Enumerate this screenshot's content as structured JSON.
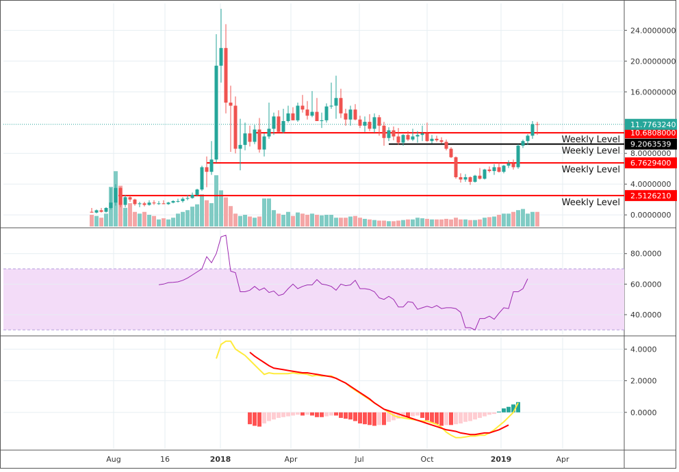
{
  "chart_data": [
    {
      "type": "candlestick",
      "title": "",
      "ylim": [
        -1.5,
        27.5
      ],
      "y_ticks": [
        "0.0000000",
        "4.0000000",
        "8.0000000",
        "16.0000000",
        "20.0000000",
        "24.0000000"
      ],
      "x_ticks": [
        "Aug",
        "16",
        "2018",
        "Apr",
        "Jul",
        "Oct",
        "2019",
        "Apr"
      ],
      "last_price": "11.7763240",
      "last_price_value": 11.7763,
      "levels": [
        {
          "value": 10.6808,
          "tag": "10.6808000",
          "label": "Weekly Level",
          "color": "#ff0000",
          "tag_fg": "#ffffff"
        },
        {
          "value": 9.20635,
          "tag": "9.2063539",
          "label": "Weekly Level",
          "color": "#000000",
          "tag_fg": "#ffffff"
        },
        {
          "value": 6.76294,
          "tag": "6.7629400",
          "label": "Weekly Level",
          "color": "#ff0000",
          "tag_fg": "#ffffff"
        },
        {
          "value": 2.51262,
          "tag": "2.5126210",
          "label": "Weekly Level",
          "color": "#ff0000",
          "tag_fg": "#ffffff"
        }
      ],
      "candles": [
        [
          0.4,
          0.9,
          0.3,
          0.3
        ],
        [
          0.3,
          0.7,
          0.2,
          0.6
        ],
        [
          0.6,
          0.9,
          0.3,
          0.4
        ],
        [
          0.4,
          1.0,
          0.3,
          0.9
        ],
        [
          0.9,
          3.5,
          0.7,
          1.6
        ],
        [
          1.6,
          4.0,
          1.2,
          3.5
        ],
        [
          3.5,
          3.6,
          1.0,
          1.3
        ],
        [
          1.3,
          2.6,
          1.0,
          2.3
        ],
        [
          2.3,
          2.5,
          1.7,
          2.0
        ],
        [
          2.0,
          2.1,
          1.2,
          1.4
        ],
        [
          1.4,
          1.7,
          1.0,
          1.5
        ],
        [
          1.5,
          1.7,
          1.1,
          1.3
        ],
        [
          1.3,
          1.9,
          1.2,
          1.6
        ],
        [
          1.6,
          1.9,
          1.3,
          1.5
        ],
        [
          1.5,
          1.8,
          1.3,
          1.5
        ],
        [
          1.5,
          1.9,
          1.4,
          1.4
        ],
        [
          1.4,
          1.7,
          1.3,
          1.6
        ],
        [
          1.6,
          1.9,
          1.5,
          1.8
        ],
        [
          1.8,
          2.1,
          1.6,
          1.8
        ],
        [
          1.8,
          2.3,
          1.6,
          2.1
        ],
        [
          2.1,
          2.6,
          1.9,
          2.2
        ],
        [
          2.2,
          2.9,
          2.1,
          2.6
        ],
        [
          2.6,
          3.4,
          2.4,
          3.3
        ],
        [
          3.3,
          6.4,
          3.1,
          6.2
        ],
        [
          6.2,
          7.6,
          3.6,
          5.6
        ],
        [
          5.6,
          9.6,
          5.2,
          7.2
        ],
        [
          7.2,
          23.5,
          6.8,
          19.4
        ],
        [
          19.4,
          26.8,
          17.2,
          21.7
        ],
        [
          21.7,
          24.8,
          13.2,
          14.6
        ],
        [
          14.6,
          16.8,
          8.2,
          14.2
        ],
        [
          14.2,
          15.4,
          8.0,
          8.6
        ],
        [
          8.6,
          12.5,
          5.8,
          9.1
        ],
        [
          9.1,
          12.0,
          8.4,
          10.6
        ],
        [
          10.6,
          11.6,
          8.9,
          9.5
        ],
        [
          9.5,
          11.7,
          9.2,
          11.1
        ],
        [
          11.1,
          12.6,
          8.1,
          8.5
        ],
        [
          8.5,
          10.6,
          7.6,
          10.2
        ],
        [
          10.2,
          14.6,
          9.9,
          11.2
        ],
        [
          11.2,
          13.3,
          10.4,
          12.8
        ],
        [
          12.8,
          13.6,
          10.8,
          10.8
        ],
        [
          10.8,
          13.8,
          10.6,
          12.2
        ],
        [
          12.2,
          14.2,
          12.0,
          13.2
        ],
        [
          13.2,
          14.0,
          12.3,
          12.3
        ],
        [
          12.3,
          14.6,
          12.1,
          14.2
        ],
        [
          14.2,
          15.6,
          13.3,
          13.7
        ],
        [
          13.7,
          14.8,
          12.4,
          12.9
        ],
        [
          12.9,
          16.1,
          12.7,
          13.4
        ],
        [
          13.4,
          15.2,
          12.2,
          12.2
        ],
        [
          12.2,
          13.3,
          11.3,
          12.3
        ],
        [
          12.3,
          14.5,
          12.0,
          14.1
        ],
        [
          14.1,
          17.2,
          13.8,
          14.2
        ],
        [
          14.2,
          18.1,
          12.5,
          15.2
        ],
        [
          15.2,
          16.4,
          12.6,
          13.2
        ],
        [
          13.2,
          13.8,
          11.6,
          12.4
        ],
        [
          12.4,
          14.2,
          11.6,
          13.7
        ],
        [
          13.7,
          14.4,
          12.3,
          12.4
        ],
        [
          12.4,
          12.9,
          11.3,
          11.6
        ],
        [
          11.6,
          12.8,
          10.8,
          12.1
        ],
        [
          12.1,
          13.1,
          10.9,
          11.2
        ],
        [
          11.2,
          13.2,
          10.7,
          12.7
        ],
        [
          12.7,
          13.0,
          10.3,
          11.6
        ],
        [
          11.6,
          12.1,
          9.0,
          10.0
        ],
        [
          10.0,
          11.4,
          9.6,
          11.0
        ],
        [
          11.0,
          11.5,
          9.7,
          10.2
        ],
        [
          10.2,
          11.3,
          9.1,
          9.4
        ],
        [
          9.4,
          10.5,
          9.0,
          10.4
        ],
        [
          10.4,
          10.9,
          9.6,
          9.8
        ],
        [
          9.8,
          11.2,
          9.6,
          10.2
        ],
        [
          10.2,
          10.9,
          9.4,
          10.4
        ],
        [
          10.4,
          11.6,
          9.6,
          10.6
        ],
        [
          10.6,
          12.0,
          9.5,
          9.6
        ],
        [
          9.6,
          10.4,
          9.3,
          9.9
        ],
        [
          9.9,
          10.3,
          9.5,
          9.7
        ],
        [
          9.7,
          10.1,
          9.3,
          9.5
        ],
        [
          9.5,
          9.8,
          8.4,
          8.6
        ],
        [
          8.6,
          8.8,
          7.4,
          7.5
        ],
        [
          7.5,
          7.6,
          4.7,
          4.9
        ],
        [
          4.9,
          5.4,
          4.2,
          4.6
        ],
        [
          4.6,
          5.3,
          4.3,
          4.9
        ],
        [
          4.9,
          5.0,
          3.9,
          4.3
        ],
        [
          4.3,
          5.2,
          4.2,
          5.1
        ],
        [
          5.1,
          6.1,
          4.6,
          4.7
        ],
        [
          4.7,
          6.0,
          4.6,
          5.9
        ],
        [
          5.9,
          6.3,
          5.5,
          5.7
        ],
        [
          5.7,
          6.6,
          5.2,
          6.2
        ],
        [
          6.2,
          6.8,
          5.5,
          5.6
        ],
        [
          5.6,
          6.5,
          5.4,
          6.4
        ],
        [
          6.4,
          7.1,
          6.1,
          6.7
        ],
        [
          6.7,
          7.2,
          5.9,
          6.2
        ],
        [
          6.2,
          9.2,
          6.0,
          9.0
        ],
        [
          9.0,
          9.8,
          8.7,
          9.6
        ],
        [
          9.6,
          10.5,
          9.1,
          10.3
        ],
        [
          10.3,
          12.2,
          9.9,
          11.8
        ],
        [
          11.8,
          12.1,
          10.4,
          11.78
        ]
      ],
      "volume": [
        0.2,
        0.18,
        0.15,
        0.22,
        0.68,
        0.95,
        0.7,
        0.32,
        0.4,
        0.25,
        0.22,
        0.25,
        0.2,
        0.18,
        0.12,
        0.14,
        0.12,
        0.15,
        0.22,
        0.25,
        0.28,
        0.34,
        0.38,
        0.55,
        0.45,
        0.4,
        0.88,
        0.62,
        0.5,
        0.35,
        0.22,
        0.18,
        0.2,
        0.17,
        0.15,
        0.17,
        0.48,
        0.48,
        0.28,
        0.22,
        0.2,
        0.25,
        0.18,
        0.24,
        0.22,
        0.2,
        0.22,
        0.2,
        0.19,
        0.2,
        0.2,
        0.15,
        0.15,
        0.15,
        0.17,
        0.18,
        0.15,
        0.13,
        0.12,
        0.11,
        0.1,
        0.1,
        0.09,
        0.09,
        0.1,
        0.11,
        0.12,
        0.12,
        0.15,
        0.14,
        0.13,
        0.12,
        0.12,
        0.12,
        0.13,
        0.12,
        0.15,
        0.12,
        0.12,
        0.11,
        0.11,
        0.12,
        0.15,
        0.16,
        0.17,
        0.2,
        0.22,
        0.22,
        0.25,
        0.28,
        0.3,
        0.22,
        0.25,
        0.25
      ]
    },
    {
      "type": "line",
      "title": "",
      "ylim": [
        27,
        96
      ],
      "y_ticks": [
        "40.0000",
        "60.0000",
        "80.0000"
      ],
      "band": [
        30,
        70
      ],
      "values": [
        null,
        null,
        null,
        null,
        null,
        null,
        null,
        null,
        null,
        null,
        null,
        null,
        null,
        null,
        59.6,
        60.0,
        61.0,
        61.2,
        61.5,
        62.5,
        64.0,
        66.0,
        68.0,
        70.0,
        78.0,
        74.0,
        80.0,
        91.0,
        92.0,
        68.5,
        67.5,
        55.0,
        55.0,
        56.0,
        58.5,
        56.0,
        57.5,
        54.5,
        55.5,
        52.5,
        53.5,
        57.0,
        60.0,
        57.0,
        58.5,
        59.5,
        59.5,
        63.0,
        60.0,
        59.5,
        58.5,
        56.0,
        60.0,
        59.0,
        59.5,
        62.5,
        57.0,
        57.0,
        56.5,
        55.0,
        51.0,
        50.0,
        52.0,
        50.0,
        45.0,
        45.0,
        48.5,
        48.0,
        43.5,
        44.5,
        45.5,
        44.5,
        46.0,
        44.0,
        44.5,
        44.5,
        44.0,
        41.5,
        31.5,
        31.5,
        30.0,
        37.5,
        37.5,
        39.0,
        37.0,
        41.0,
        44.5,
        44.0,
        55.0,
        55.0,
        57.0,
        63.5
      ]
    },
    {
      "type": "line",
      "title": "",
      "ylim": [
        -2.3,
        4.75
      ],
      "y_ticks": [
        "0.0000",
        "2.0000",
        "4.0000"
      ],
      "macd": [
        null,
        null,
        null,
        null,
        null,
        null,
        null,
        null,
        null,
        null,
        null,
        null,
        null,
        null,
        null,
        null,
        null,
        null,
        null,
        null,
        null,
        null,
        null,
        null,
        null,
        null,
        3.4,
        4.3,
        4.5,
        4.5,
        4.0,
        3.8,
        3.6,
        3.3,
        3.0,
        2.7,
        2.4,
        2.5,
        2.45,
        2.45,
        2.45,
        2.45,
        2.5,
        2.45,
        2.45,
        2.4,
        2.3,
        2.35,
        2.3,
        2.3,
        2.3,
        2.15,
        2.0,
        1.85,
        1.6,
        1.4,
        1.2,
        1.0,
        0.8,
        0.6,
        0.4,
        0.2,
        0.0,
        -0.2,
        -0.3,
        -0.35,
        -0.4,
        -0.45,
        -0.5,
        -0.55,
        -0.55,
        -0.65,
        -0.75,
        -0.95,
        -1.25,
        -1.45,
        -1.6,
        -1.6,
        -1.55,
        -1.5,
        -1.5,
        -1.45,
        -1.45,
        -1.3,
        -1.1,
        -0.85,
        -0.6,
        -0.3,
        0.0,
        0.6
      ],
      "signal": [
        null,
        null,
        null,
        null,
        null,
        null,
        null,
        null,
        null,
        null,
        null,
        null,
        null,
        null,
        null,
        null,
        null,
        null,
        null,
        null,
        null,
        null,
        null,
        null,
        null,
        null,
        null,
        null,
        null,
        null,
        null,
        null,
        null,
        3.8,
        3.55,
        3.35,
        3.15,
        2.95,
        2.8,
        2.75,
        2.7,
        2.65,
        2.6,
        2.55,
        2.5,
        2.5,
        2.45,
        2.4,
        2.35,
        2.3,
        2.25,
        2.15,
        2.0,
        1.85,
        1.65,
        1.45,
        1.25,
        1.05,
        0.85,
        0.6,
        0.4,
        0.2,
        0.1,
        0.0,
        -0.1,
        -0.2,
        -0.3,
        -0.4,
        -0.5,
        -0.6,
        -0.7,
        -0.8,
        -0.9,
        -1.0,
        -1.1,
        -1.15,
        -1.2,
        -1.3,
        -1.35,
        -1.4,
        -1.4,
        -1.35,
        -1.3,
        -1.3,
        -1.2,
        -1.1,
        -0.95,
        -0.8
      ],
      "hist": [
        null,
        null,
        null,
        null,
        null,
        null,
        null,
        null,
        null,
        null,
        null,
        null,
        null,
        null,
        null,
        null,
        null,
        null,
        null,
        null,
        null,
        null,
        null,
        null,
        null,
        null,
        null,
        null,
        null,
        null,
        null,
        null,
        null,
        -0.75,
        -0.85,
        -0.9,
        -0.7,
        -0.55,
        -0.45,
        -0.35,
        -0.3,
        -0.25,
        -0.2,
        -0.15,
        -0.2,
        -0.15,
        -0.2,
        -0.3,
        -0.3,
        -0.25,
        -0.2,
        -0.2,
        -0.35,
        -0.4,
        -0.45,
        -0.55,
        -0.7,
        -0.75,
        -0.8,
        -0.85,
        -0.8,
        -0.8,
        -0.6,
        -0.5,
        -0.4,
        -0.3,
        -0.3,
        -0.25,
        -0.2,
        -0.35,
        -0.5,
        -0.65,
        -0.75,
        -0.85,
        -0.8,
        -0.8,
        -0.75,
        -0.7,
        -0.6,
        -0.55,
        -0.45,
        -0.35,
        -0.25,
        -0.15,
        -0.1,
        0.05,
        0.25,
        0.35,
        0.5,
        0.65
      ]
    }
  ],
  "colors": {
    "up": "#26a69a",
    "down": "#ef5350",
    "rsi_line": "#9c27b0",
    "rsi_band": "#f3dcf8",
    "macd_line": "#ffeb3b",
    "signal_line": "#ff0000",
    "last_price_tag": "#26a69a"
  }
}
